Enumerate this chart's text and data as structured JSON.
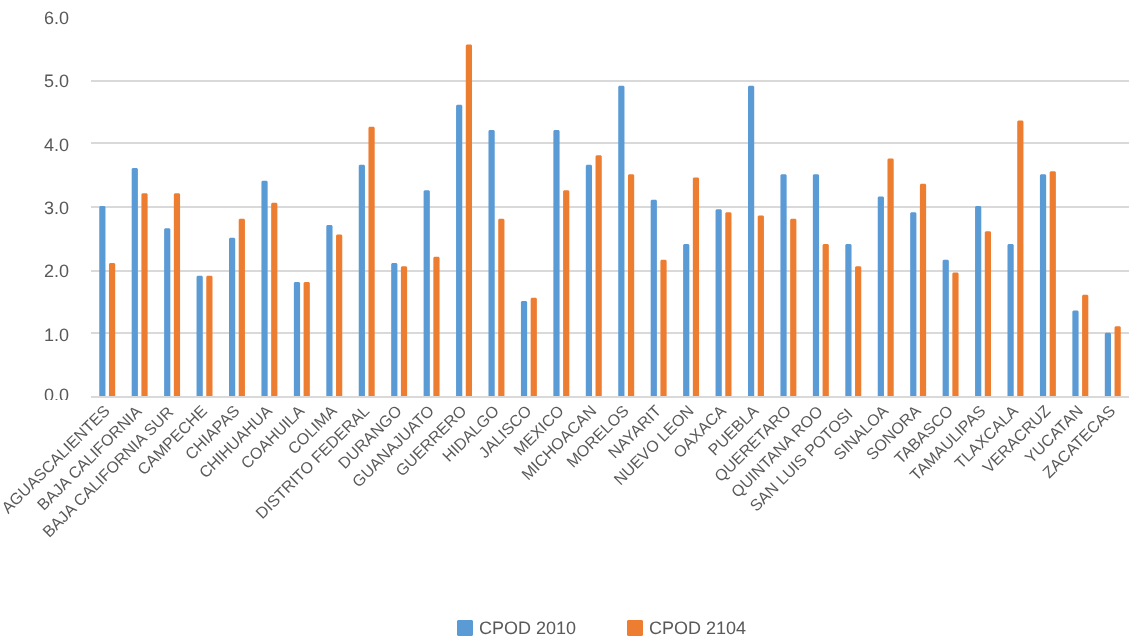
{
  "chart_data": {
    "type": "bar",
    "categories": [
      "AGUASCALIENTES",
      "BAJA CALIFORNIA",
      "BAJA CALIFORNIA SUR",
      "CAMPECHE",
      "CHIAPAS",
      "CHIHUAHUA",
      "COAHUILA",
      "COLIMA",
      "DISTRITO FEDERAL",
      "DURANGO",
      "GUANAJUATO",
      "GUERRERO",
      "HIDALGO",
      "JALISCO",
      "MEXICO",
      "MICHOACAN",
      "MORELOS",
      "NAYARIT",
      "NUEVO LEON",
      "OAXACA",
      "PUEBLA",
      "QUERETARO",
      "QUINTANA ROO",
      "SAN  LUIS POTOSI",
      "SINALOA",
      "SONORA",
      "TABASCO",
      "TAMAULIPAS",
      "TLAXCALA",
      "VERACRUZ",
      "YUCATAN",
      "ZACATECAS"
    ],
    "series": [
      {
        "name": "CPOD 2010",
        "color": "#5b9bd5",
        "values": [
          3.0,
          3.6,
          2.65,
          1.9,
          2.5,
          3.4,
          1.8,
          2.7,
          3.65,
          2.1,
          3.25,
          4.6,
          4.2,
          1.5,
          4.2,
          3.65,
          4.9,
          3.1,
          2.4,
          2.95,
          4.9,
          3.5,
          3.5,
          2.4,
          3.15,
          2.9,
          2.15,
          3.0,
          2.4,
          3.5,
          1.35,
          1.0
        ]
      },
      {
        "name": "CPOD 2104",
        "color": "#ed7d31",
        "values": [
          2.1,
          3.2,
          3.2,
          1.9,
          2.8,
          3.05,
          1.8,
          2.55,
          4.25,
          2.05,
          2.2,
          5.55,
          2.8,
          1.55,
          3.25,
          3.8,
          3.5,
          2.15,
          3.45,
          2.9,
          2.85,
          2.8,
          2.4,
          2.05,
          3.75,
          3.35,
          1.95,
          2.6,
          4.35,
          3.55,
          1.6,
          1.1
        ]
      }
    ],
    "ylim": [
      0,
      6
    ],
    "yticks": [
      {
        "value": 0,
        "label": "0.0"
      },
      {
        "value": 1,
        "label": "1.0"
      },
      {
        "value": 2,
        "label": "2.0"
      },
      {
        "value": 3,
        "label": "3.0"
      },
      {
        "value": 4,
        "label": "4.0"
      },
      {
        "value": 5,
        "label": "5.0"
      },
      {
        "value": 6,
        "label": "6.0"
      }
    ],
    "grid": "y",
    "legend": "bottom"
  }
}
